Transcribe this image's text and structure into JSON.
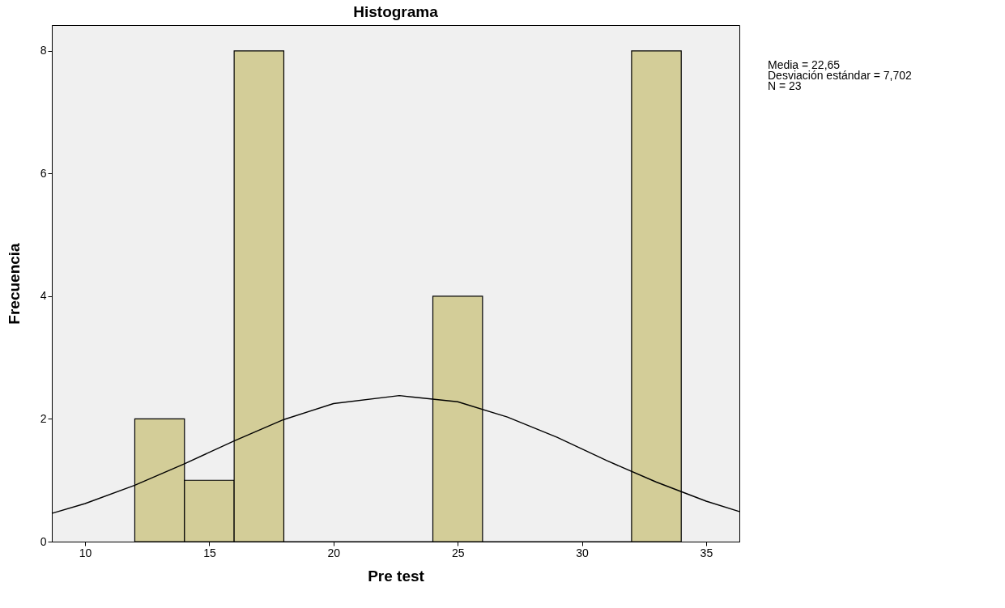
{
  "chart_data": {
    "type": "histogram",
    "title": "Histograma",
    "xlabel": "Pre test",
    "ylabel": "Frecuencia",
    "bins": [
      12,
      14,
      16,
      18,
      24,
      26,
      32,
      34
    ],
    "values": [
      2,
      1,
      8,
      0,
      4,
      0,
      8
    ],
    "color": "#d3cd98",
    "series": [
      {
        "type": "line",
        "color": "#000000",
        "x": [
          8.66,
          10,
          12,
          14,
          16,
          18,
          20,
          22.65,
          25,
          27,
          29,
          31,
          33,
          35,
          36.34
        ],
        "values": [
          0.46,
          0.62,
          0.92,
          1.27,
          1.64,
          1.99,
          2.25,
          2.38,
          2.28,
          2.03,
          1.7,
          1.32,
          0.97,
          0.66,
          0.49
        ]
      }
    ],
    "xlim": [
      8.66,
      36.34
    ],
    "xticks": [
      10,
      15,
      20,
      25,
      30,
      35
    ],
    "ylim": [
      0,
      8.42
    ],
    "yticks": [
      0,
      2,
      4,
      6,
      8
    ],
    "grid": false,
    "annotations": [
      "Media = 22,65",
      "Desviación estándar = 7,702",
      "N = 23"
    ]
  }
}
